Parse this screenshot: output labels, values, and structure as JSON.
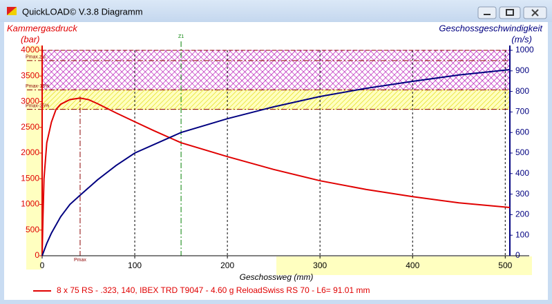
{
  "window_title": "QuickLOAD© V.3.8 Diagramm",
  "chart_data": {
    "type": "line",
    "ylabel": "Kammergasdruck",
    "yunit": "(bar)",
    "y2label": "Geschossgeschwindigkeit",
    "y2unit": "(m/s)",
    "xlabel": "Geschossweg (mm)",
    "xlim": [
      0,
      505
    ],
    "xticks": [
      0,
      100,
      200,
      300,
      400,
      500
    ],
    "ylim": [
      0,
      4000
    ],
    "yticks": [
      0,
      500,
      1000,
      1500,
      2000,
      2500,
      3000,
      3500,
      4000
    ],
    "y2lim": [
      0,
      1000
    ],
    "y2ticks": [
      0,
      100,
      200,
      300,
      400,
      500,
      600,
      700,
      800,
      900,
      1000
    ],
    "bands": [
      {
        "from": 3230,
        "to": 4000,
        "color": "#b000b0"
      },
      {
        "from": 2850,
        "to": 3230,
        "color": "#e0d800"
      }
    ],
    "reference_lines": [
      {
        "label": "Pmax.zul.",
        "value": 3800
      },
      {
        "label": "Pmax-15%",
        "value": 3230
      },
      {
        "label": "Pmax-25%",
        "value": 2850
      }
    ],
    "vertical_lines": [
      {
        "label": "Pmax",
        "value": 41,
        "color": "#8b0000"
      },
      {
        "label": "Z1",
        "value": 150,
        "color": "#008000"
      }
    ],
    "series": [
      {
        "name": "8 x 75 RS - .323, 140, IBEX TRD T9047 - 4.60 g ReloadSwiss RS 70 - L6= 91.01 mm",
        "color": "#e00000",
        "x": [
          0,
          1,
          2,
          5,
          10,
          15,
          20,
          30,
          41,
          50,
          60,
          80,
          100,
          120,
          150,
          200,
          250,
          300,
          350,
          400,
          450,
          505
        ],
        "values": [
          0,
          800,
          1500,
          2200,
          2600,
          2850,
          2950,
          3040,
          3070,
          3040,
          2960,
          2780,
          2610,
          2440,
          2200,
          1930,
          1680,
          1460,
          1290,
          1150,
          1030,
          940
        ]
      },
      {
        "color": "#000080",
        "axis": "y2",
        "x": [
          0,
          5,
          10,
          20,
          30,
          41,
          60,
          80,
          100,
          150,
          200,
          250,
          300,
          350,
          400,
          450,
          505
        ],
        "values": [
          0,
          60,
          110,
          190,
          250,
          295,
          370,
          440,
          500,
          600,
          667,
          725,
          775,
          815,
          849,
          880,
          906
        ]
      }
    ]
  }
}
